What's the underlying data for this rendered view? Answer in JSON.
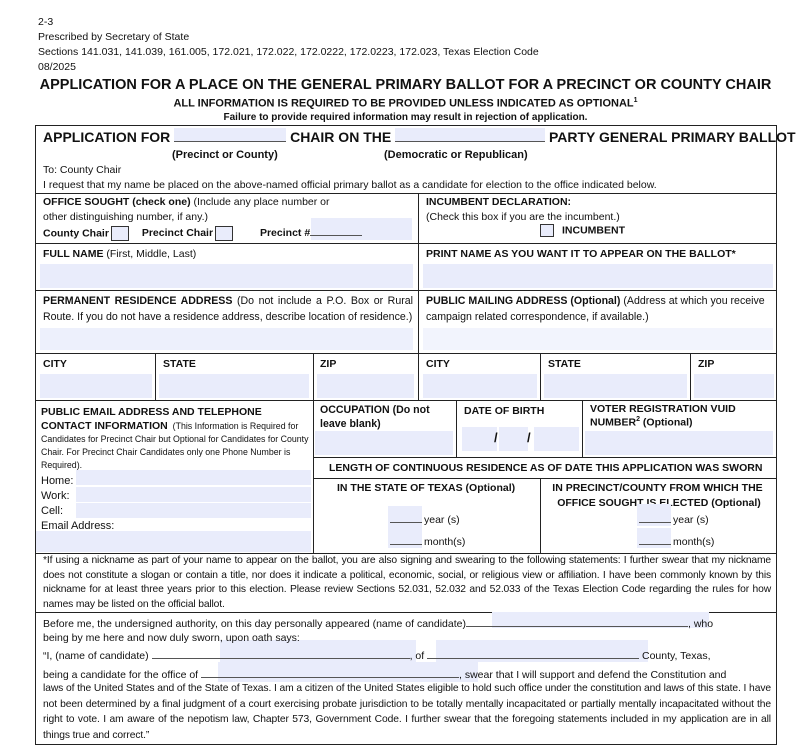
{
  "header": {
    "form_no": "2-3",
    "prescribed": "Prescribed by Secretary of State",
    "sections": "Sections 141.031, 141.039, 161.005, 172.021, 172.022, 172.0222, 172.0223, 172.023, Texas Election Code",
    "date": "08/2025",
    "title": "APPLICATION FOR A PLACE ON THE GENERAL PRIMARY BALLOT FOR A PRECINCT OR COUNTY CHAIR",
    "required_note": "ALL INFORMATION IS REQUIRED TO BE PROVIDED UNLESS INDICATED AS OPTIONAL",
    "required_sup": "1",
    "failure_note": "Failure to provide required information may result in rejection of application."
  },
  "application": {
    "app_for": "APPLICATION FOR",
    "chair_on_the": "CHAIR ON THE",
    "party_ballot": "PARTY GENERAL PRIMARY BALLOT",
    "precinct_or_county": "(Precinct or County)",
    "dem_or_rep": "(Democratic or Republican)",
    "to": "To:  County Chair",
    "request": "I request that my name be placed on the above-named official primary ballot as a candidate for election to the office indicated below."
  },
  "office": {
    "label": "OFFICE SOUGHT (check one)",
    "note1": " (Include any place number or",
    "note2": "other distinguishing number, if any.)",
    "county_chair": "County Chair",
    "precinct_chair": "Precinct Chair",
    "precinct_no": "Precinct #"
  },
  "incumbent": {
    "label": "INCUMBENT DECLARATION:",
    "note": "(Check this box if you are the incumbent.)",
    "checkbox": "INCUMBENT"
  },
  "full_name": {
    "label": "FULL NAME",
    "note": " (First, Middle, Last)"
  },
  "ballot_name": {
    "label": "PRINT NAME AS YOU WANT IT TO APPEAR ON THE BALLOT*"
  },
  "residence": {
    "label": "PERMANENT RESIDENCE ADDRESS",
    "note": " (Do not include a P.O. Box or Rural Route. If you do not have a residence address, describe location of residence.)"
  },
  "mailing": {
    "label": "PUBLIC MAILING ADDRESS (Optional)",
    "note": " (Address at which you receive campaign related correspondence, if available.)"
  },
  "address_cols": {
    "city": "CITY",
    "state": "STATE",
    "zip": "ZIP"
  },
  "contact": {
    "label1": "PUBLIC EMAIL ADDRESS AND TELEPHONE",
    "label2": "CONTACT INFORMATION",
    "note": "(This Information is Required for Candidates for Precinct Chair but Optional for Candidates for County Chair. For Precinct Chair Candidates only one Phone Number is Required).",
    "home": "Home:",
    "work": "Work:",
    "cell": "Cell:",
    "email": "Email Address:"
  },
  "occupation": {
    "label": "OCCUPATION (Do not leave blank)"
  },
  "dob": {
    "label": "DATE OF BIRTH",
    "sep": "/"
  },
  "vuid": {
    "label1": "VOTER REGISTRATION VUID",
    "label2": "NUMBER",
    "sup": "2",
    "optional": " (Optional)"
  },
  "length": {
    "label": "LENGTH OF CONTINUOUS RESIDENCE AS OF DATE THIS APPLICATION WAS SWORN",
    "texas": "IN THE STATE OF TEXAS (Optional)",
    "precinct1": "IN PRECINCT/COUNTY FROM WHICH THE",
    "precinct2": "OFFICE SOUGHT IS ELECTED (Optional)",
    "years": "year (s)",
    "months": "month(s)"
  },
  "nickname": "*If using a nickname as part of your name to appear on the ballot, you are also signing and swearing to the following statements:  I further swear that my nickname does not constitute a slogan or contain a title, nor does it indicate a political, economic, social, or religious view or affiliation.  I have been commonly known by this nickname for at least three years prior to this election.  Please review Sections 52.031, 52.032 and 52.033 of the Texas Election Code regarding the rules for how names may be listed on the official ballot.",
  "oath": {
    "before": "Before me, the undersigned authority, on this day personally appeared (name of candidate)",
    "who": ", who",
    "sworn": "being by me here and now duly sworn, upon oath says:",
    "i_name": "“I, (name of candidate)",
    "of": ", of",
    "county": "County, Texas,",
    "candidate_for": "being a candidate for the office of",
    "swear": ", swear that I will support and defend the Constitution and",
    "body": "laws of the United States and of the State of Texas.  I am a citizen of the United States eligible to hold such office under the constitution and laws of this state.  I have not been determined by a final judgment of a court exercising probate jurisdiction to be totally mentally incapacitated or partially mentally incapacitated without the right to vote.  I am aware of the nepotism law, Chapter 573, Government Code.  I further swear that the foregoing statements included in my application are in all things true and correct.”"
  }
}
